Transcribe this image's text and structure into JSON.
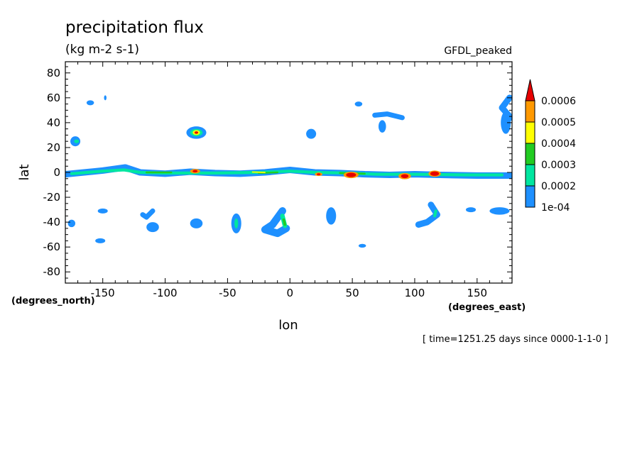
{
  "chart_data": {
    "type": "heatmap",
    "title": "precipitation flux",
    "subtitle": "(kg m-2 s-1)",
    "dataset_label": "GFDL_peaked",
    "xlabel": "lon",
    "ylabel": "lat",
    "x_units": "(degrees_east)",
    "y_units": "(degrees_north)",
    "time_label": "[ time=1251.25 days since 0000-1-1-0 ]",
    "xlim": [
      -180,
      178
    ],
    "ylim": [
      -89,
      89
    ],
    "xticks": [
      -150,
      -100,
      -50,
      0,
      50,
      100,
      150
    ],
    "xtick_labels": [
      "-150",
      "-100",
      "-50",
      "0",
      "50",
      "100",
      "150"
    ],
    "yticks": [
      80,
      60,
      40,
      20,
      0,
      -20,
      -40,
      -60,
      -80
    ],
    "ytick_labels": [
      "80",
      "60",
      "40",
      "20",
      "0",
      "-20",
      "-40",
      "-60",
      "-80"
    ],
    "colorbar": {
      "levels": [
        0.0001,
        0.0002,
        0.0003,
        0.0004,
        0.0005,
        0.0006
      ],
      "labels": [
        "1e-04",
        "0.0002",
        "0.0003",
        "0.0004",
        "0.0005",
        "0.0006"
      ],
      "colors": [
        "#1e90ff",
        "#00e6a0",
        "#22cc22",
        "#ffff00",
        "#ff9900",
        "#e60000"
      ]
    },
    "features": [
      {
        "kind": "band",
        "level": 0,
        "points": [
          [
            -180,
            -1.5
          ],
          [
            -150,
            1.5
          ],
          [
            -132,
            4
          ],
          [
            -120,
            0
          ],
          [
            -100,
            -1
          ],
          [
            -80,
            0.5
          ],
          [
            -60,
            -0.5
          ],
          [
            -40,
            -1
          ],
          [
            -20,
            0
          ],
          [
            0,
            2
          ],
          [
            20,
            0
          ],
          [
            40,
            -0.5
          ],
          [
            60,
            -1.5
          ],
          [
            80,
            -2
          ],
          [
            100,
            -1.5
          ],
          [
            120,
            -2
          ],
          [
            150,
            -2.5
          ],
          [
            178,
            -2.5
          ]
        ],
        "halfwidth": 2.6
      },
      {
        "kind": "band",
        "level": 1,
        "points": [
          [
            -175,
            -1
          ],
          [
            -150,
            1
          ],
          [
            -133,
            2
          ],
          [
            -120,
            0
          ],
          [
            -100,
            -0.5
          ],
          [
            -60,
            -0.5
          ],
          [
            -25,
            0
          ],
          [
            0,
            1
          ],
          [
            20,
            0
          ],
          [
            45,
            -0.5
          ],
          [
            70,
            -1.5
          ],
          [
            100,
            -1.5
          ],
          [
            140,
            -2
          ],
          [
            170,
            -2
          ]
        ],
        "halfwidth": 1.2
      },
      {
        "kind": "band",
        "level": 2,
        "points": [
          [
            -115,
            0
          ],
          [
            -95,
            0
          ]
        ],
        "halfwidth": 0.7
      },
      {
        "kind": "band",
        "level": 2,
        "points": [
          [
            -25,
            -0.5
          ],
          [
            -10,
            0
          ]
        ],
        "halfwidth": 0.7
      },
      {
        "kind": "band",
        "level": 2,
        "points": [
          [
            40,
            -0.5
          ],
          [
            60,
            -1
          ]
        ],
        "halfwidth": 0.7
      },
      {
        "kind": "band",
        "level": 3,
        "points": [
          [
            -30,
            0.3
          ],
          [
            -20,
            0
          ]
        ],
        "halfwidth": 0.5
      },
      {
        "kind": "blob",
        "level": 4,
        "lon": -76,
        "lat": 1,
        "rx": 4,
        "ry": 1.8
      },
      {
        "kind": "blob",
        "level": 5,
        "lon": -76,
        "lat": 1,
        "rx": 2,
        "ry": 1.0
      },
      {
        "kind": "blob",
        "level": 4,
        "lon": 23,
        "lat": -1.5,
        "rx": 3,
        "ry": 1.4
      },
      {
        "kind": "blob",
        "level": 5,
        "lon": 23,
        "lat": -1.5,
        "rx": 1.6,
        "ry": 0.8
      },
      {
        "kind": "blob",
        "level": 4,
        "lon": 49,
        "lat": -2,
        "rx": 6,
        "ry": 2.6
      },
      {
        "kind": "blob",
        "level": 5,
        "lon": 49,
        "lat": -2,
        "rx": 4,
        "ry": 1.8
      },
      {
        "kind": "blob",
        "level": 4,
        "lon": 92,
        "lat": -3,
        "rx": 5,
        "ry": 2.5
      },
      {
        "kind": "blob",
        "level": 5,
        "lon": 92,
        "lat": -3,
        "rx": 3,
        "ry": 1.6
      },
      {
        "kind": "blob",
        "level": 4,
        "lon": 116,
        "lat": -1,
        "rx": 5,
        "ry": 2.5
      },
      {
        "kind": "blob",
        "level": 5,
        "lon": 116,
        "lat": -1,
        "rx": 3.5,
        "ry": 1.8
      },
      {
        "kind": "blob",
        "level": 0,
        "lon": -75,
        "lat": 32,
        "rx": 8,
        "ry": 5
      },
      {
        "kind": "blob",
        "level": 1,
        "lon": -75,
        "lat": 32,
        "rx": 5,
        "ry": 3
      },
      {
        "kind": "blob",
        "level": 3,
        "lon": -75,
        "lat": 32,
        "rx": 3,
        "ry": 2
      },
      {
        "kind": "blob",
        "level": 5,
        "lon": -75,
        "lat": 32,
        "rx": 1.5,
        "ry": 1
      },
      {
        "kind": "blob",
        "level": 0,
        "lon": -172,
        "lat": 25,
        "rx": 4,
        "ry": 4
      },
      {
        "kind": "blob",
        "level": 1,
        "lon": -171,
        "lat": 25,
        "rx": 2,
        "ry": 1.5
      },
      {
        "kind": "blob",
        "level": 0,
        "lon": -160,
        "lat": 56,
        "rx": 3,
        "ry": 2
      },
      {
        "kind": "blob",
        "level": 0,
        "lon": -148,
        "lat": 60,
        "rx": 1,
        "ry": 2
      },
      {
        "kind": "blob",
        "level": 0,
        "lon": 17,
        "lat": 31,
        "rx": 4,
        "ry": 4
      },
      {
        "kind": "blob",
        "level": 0,
        "lon": 74,
        "lat": 37,
        "rx": 3,
        "ry": 5
      },
      {
        "kind": "blob",
        "level": 0,
        "lon": 55,
        "lat": 55,
        "rx": 3,
        "ry": 2
      },
      {
        "kind": "blob",
        "level": 0,
        "lon": 173,
        "lat": 40,
        "rx": 4,
        "ry": 9
      },
      {
        "kind": "blob",
        "level": 0,
        "lon": -43,
        "lat": -41,
        "rx": 4,
        "ry": 8
      },
      {
        "kind": "blob",
        "level": 1,
        "lon": -43,
        "lat": -41,
        "rx": 1.5,
        "ry": 4
      },
      {
        "kind": "blob",
        "level": 0,
        "lon": 33,
        "lat": -35,
        "rx": 4,
        "ry": 7
      },
      {
        "kind": "blob",
        "level": 0,
        "lon": -110,
        "lat": -44,
        "rx": 5,
        "ry": 4
      },
      {
        "kind": "blob",
        "level": 0,
        "lon": -75,
        "lat": -41,
        "rx": 5,
        "ry": 4
      },
      {
        "kind": "blob",
        "level": 0,
        "lon": -150,
        "lat": -31,
        "rx": 4,
        "ry": 2
      },
      {
        "kind": "blob",
        "level": 0,
        "lon": -175,
        "lat": -41,
        "rx": 3,
        "ry": 3
      },
      {
        "kind": "blob",
        "level": 0,
        "lon": -152,
        "lat": -55,
        "rx": 4,
        "ry": 2
      },
      {
        "kind": "blob",
        "level": 0,
        "lon": 168,
        "lat": -31,
        "rx": 8,
        "ry": 3
      },
      {
        "kind": "blob",
        "level": 0,
        "lon": 145,
        "lat": -30,
        "rx": 4,
        "ry": 2
      },
      {
        "kind": "blob",
        "level": 0,
        "lon": 58,
        "lat": -59,
        "rx": 3,
        "ry": 1.5
      },
      {
        "kind": "band",
        "level": 0,
        "points": [
          [
            -110,
            -31
          ],
          [
            -115,
            -36
          ],
          [
            -118,
            -34
          ]
        ],
        "halfwidth": 2
      },
      {
        "kind": "band",
        "level": 0,
        "points": [
          [
            68,
            46
          ],
          [
            78,
            47
          ],
          [
            90,
            44
          ]
        ],
        "halfwidth": 2
      },
      {
        "kind": "band",
        "level": 0,
        "points": [
          [
            -6,
            -31
          ],
          [
            -14,
            -42
          ],
          [
            -20,
            -46
          ],
          [
            -10,
            -49
          ],
          [
            -3,
            -45
          ]
        ],
        "halfwidth": 3
      },
      {
        "kind": "band",
        "level": 1,
        "points": [
          [
            -6,
            -35
          ],
          [
            -4,
            -43
          ]
        ],
        "halfwidth": 1.8
      },
      {
        "kind": "band",
        "level": 2,
        "points": [
          [
            -5,
            -38
          ],
          [
            -4,
            -42
          ]
        ],
        "halfwidth": 1
      },
      {
        "kind": "band",
        "level": 0,
        "points": [
          [
            113,
            -26
          ],
          [
            118,
            -34
          ],
          [
            110,
            -40
          ],
          [
            103,
            -42
          ]
        ],
        "halfwidth": 2.5
      },
      {
        "kind": "band",
        "level": 1,
        "points": [
          [
            117,
            -31
          ],
          [
            116,
            -35
          ]
        ],
        "halfwidth": 1.2
      },
      {
        "kind": "band",
        "level": 0,
        "points": [
          [
            177,
            44
          ],
          [
            170,
            52
          ],
          [
            176,
            60
          ]
        ],
        "halfwidth": 2.5
      }
    ]
  }
}
